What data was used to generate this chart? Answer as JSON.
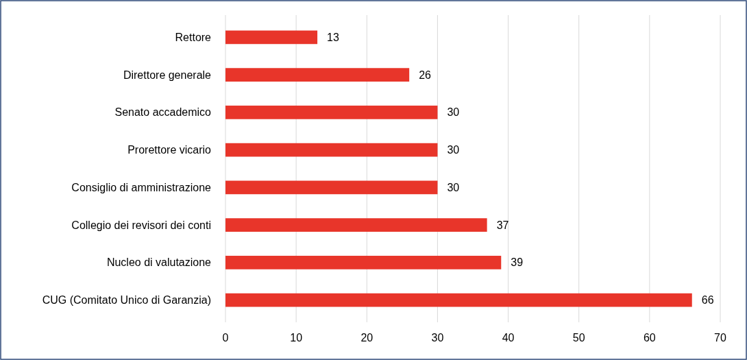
{
  "chart_data": {
    "type": "bar",
    "orientation": "horizontal",
    "categories": [
      "Rettore",
      "Direttore generale",
      "Senato accademico",
      "Prorettore vicario",
      "Consiglio di amministrazione",
      "Collegio dei revisori dei conti",
      "Nucleo di valutazione",
      "CUG (Comitato Unico di Garanzia)"
    ],
    "values": [
      13,
      26,
      30,
      30,
      30,
      37,
      39,
      66
    ],
    "color": "#e8352a",
    "xlim": [
      0,
      70
    ],
    "xticks": [
      0,
      10,
      20,
      30,
      40,
      50,
      60,
      70
    ],
    "grid": "x",
    "data_labels": true
  }
}
